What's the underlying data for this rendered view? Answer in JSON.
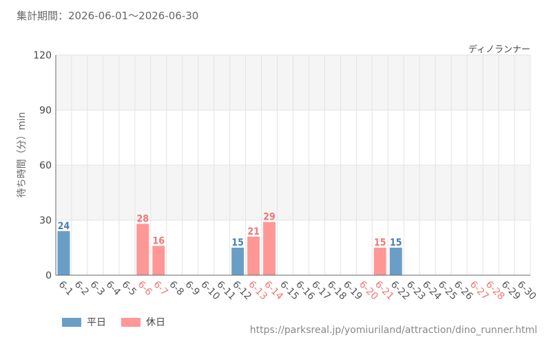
{
  "header": {
    "period_label": "集計期間：2026-06-01～2026-06-30",
    "attraction_name": "ディノランナー"
  },
  "legend": {
    "weekday_label": "平日",
    "holiday_label": "休日"
  },
  "source_url": "https://parksreal.jp/yomiuriland/attraction/dino_runner.html",
  "colors": {
    "weekday": "#6a9ec7",
    "holiday": "#ff9797",
    "weekday_text": "#4a7fb0",
    "holiday_text": "#f07676",
    "band": "#f5f5f5",
    "grid": "#e3e3e3"
  },
  "chart_data": {
    "type": "bar",
    "ylabel": "待ち時間（分）min",
    "ylim": [
      0,
      120
    ],
    "yticks": [
      0,
      30,
      60,
      90,
      120
    ],
    "categories": [
      "6-1",
      "6-2",
      "6-3",
      "6-4",
      "6-5",
      "6-6",
      "6-7",
      "6-8",
      "6-9",
      "6-10",
      "6-11",
      "6-12",
      "6-13",
      "6-14",
      "6-15",
      "6-16",
      "6-17",
      "6-18",
      "6-19",
      "6-20",
      "6-21",
      "6-22",
      "6-23",
      "6-24",
      "6-25",
      "6-26",
      "6-27",
      "6-28",
      "6-29",
      "6-30"
    ],
    "day_type": [
      "weekday",
      "weekday",
      "weekday",
      "weekday",
      "weekday",
      "holiday",
      "holiday",
      "weekday",
      "weekday",
      "weekday",
      "weekday",
      "weekday",
      "holiday",
      "holiday",
      "weekday",
      "weekday",
      "weekday",
      "weekday",
      "weekday",
      "holiday",
      "holiday",
      "weekday",
      "weekday",
      "weekday",
      "weekday",
      "weekday",
      "holiday",
      "holiday",
      "weekday",
      "weekday"
    ],
    "values": [
      24,
      null,
      null,
      null,
      null,
      28,
      16,
      null,
      null,
      null,
      null,
      15,
      21,
      29,
      null,
      null,
      null,
      null,
      null,
      null,
      15,
      15,
      null,
      null,
      null,
      null,
      null,
      null,
      null,
      null
    ],
    "series": [
      {
        "name": "平日",
        "day_type": "weekday"
      },
      {
        "name": "休日",
        "day_type": "holiday"
      }
    ]
  }
}
